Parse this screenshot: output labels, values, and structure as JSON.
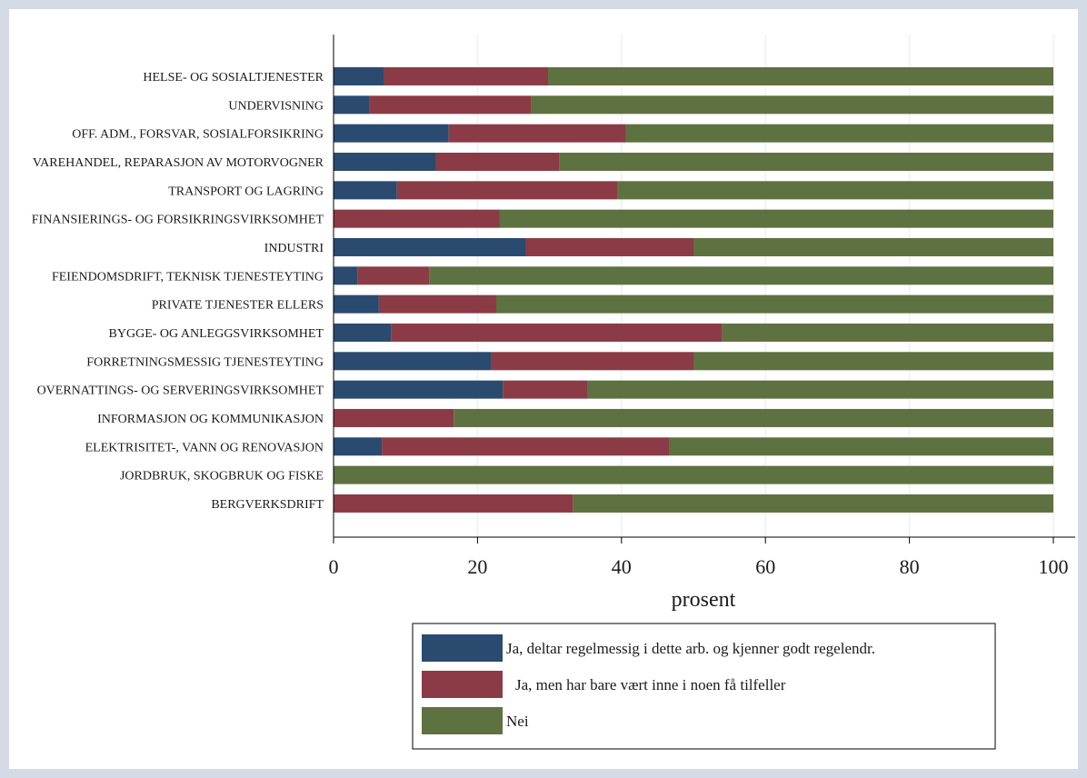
{
  "chart_data": {
    "type": "bar",
    "orientation": "horizontal",
    "stacked": true,
    "categories": [
      "HELSE- OG SOSIALTJENESTER",
      "UNDERVISNING",
      "OFF. ADM., FORSVAR, SOSIALFORSIKRING",
      "VAREHANDEL, REPARASJON AV MOTORVOGNER",
      "TRANSPORT OG LAGRING",
      "FINANSIERINGS- OG FORSIKRINGSVIRKSOMHET",
      "INDUSTRI",
      "FEIENDOMSDRIFT, TEKNISK TJENESTEYTING",
      "PRIVATE TJENESTER ELLERS",
      "BYGGE- OG ANLEGGSVIRKSOMHET",
      "FORRETNINGSMESSIG TJENESTEYTING",
      "OVERNATTINGS- OG SERVERINGSVIRKSOMHET",
      "INFORMASJON OG KOMMUNIKASJON",
      "ELEKTRISITET-, VANN OG RENOVASJON",
      "JORDBRUK, SKOGBRUK OG FISKE",
      "BERGVERKSDRIFT"
    ],
    "series": [
      {
        "name": "Ja, deltar regelmessig i dette arb. og kjenner godt regelendr.",
        "color": "#2b4a6f",
        "values": [
          7,
          5,
          16,
          14.2,
          8.8,
          0,
          26.7,
          3.3,
          6.3,
          8,
          21.9,
          23.5,
          0,
          6.7,
          0,
          0
        ]
      },
      {
        "name": "Ja, men har bare vært inne i noen få tilfeller",
        "color": "#8b3b45",
        "values": [
          22.8,
          22.5,
          24.6,
          17.2,
          30.6,
          23.1,
          23.3,
          10,
          16.3,
          46,
          28.1,
          11.8,
          16.7,
          40,
          0,
          33.3
        ]
      },
      {
        "name": "Nei",
        "color": "#5e7140",
        "values": [
          70.2,
          72.5,
          59.4,
          68.6,
          60.6,
          76.9,
          50,
          86.7,
          77.4,
          46,
          50,
          64.7,
          83.3,
          53.3,
          100,
          66.7
        ]
      }
    ],
    "xlabel": "prosent",
    "ylabel": "",
    "xlim": [
      0,
      100
    ],
    "xticks": [
      0,
      20,
      40,
      60,
      80,
      100
    ],
    "grid": true,
    "legend_position": "bottom"
  }
}
